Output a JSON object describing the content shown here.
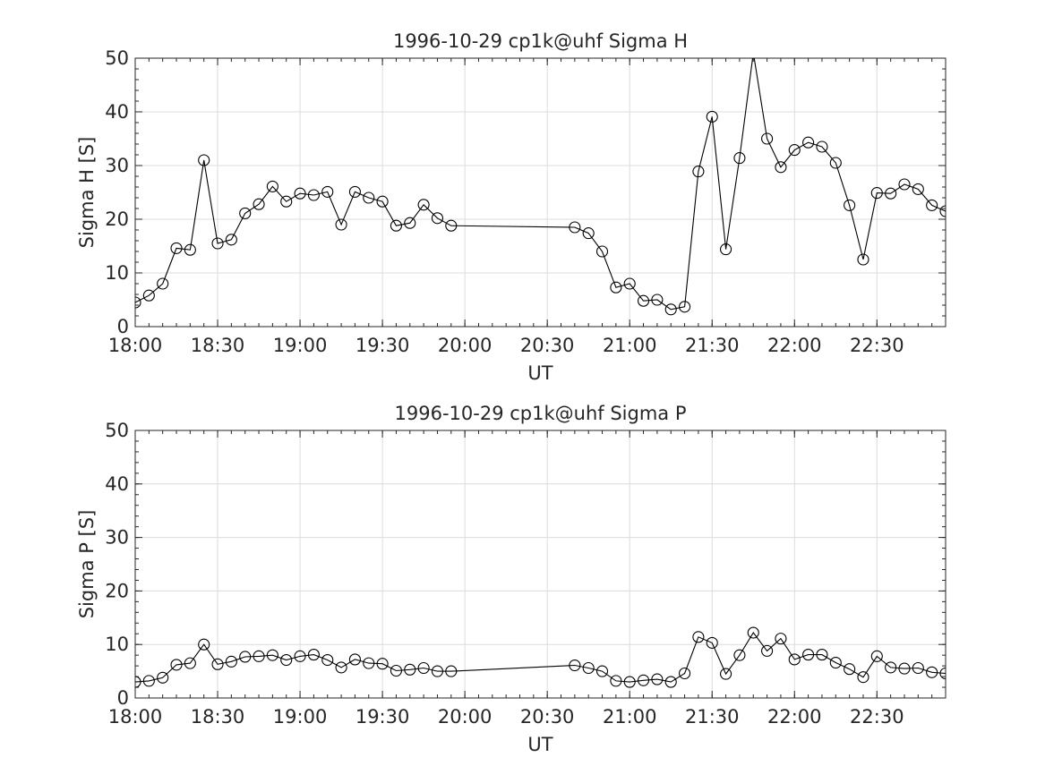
{
  "chart_data": [
    {
      "type": "line",
      "title": "1996-10-29  cp1k@uhf Sigma H",
      "xlabel": "UT",
      "ylabel": "Sigma H [S]",
      "x_ticks": [
        "18:00",
        "18:30",
        "19:00",
        "19:30",
        "20:00",
        "20:30",
        "21:00",
        "21:30",
        "22:00",
        "22:30"
      ],
      "y_ticks": [
        "0",
        "10",
        "20",
        "30",
        "40",
        "50"
      ],
      "xlim": [
        "18:00",
        "22:55"
      ],
      "ylim": [
        0,
        50
      ],
      "grid": true,
      "marker": "circle",
      "series": [
        {
          "x": [
            "18:00",
            "18:05",
            "18:10",
            "18:15",
            "18:20",
            "18:25",
            "18:30",
            "18:35",
            "18:40",
            "18:45",
            "18:50",
            "18:55",
            "19:00",
            "19:05",
            "19:10",
            "19:15",
            "19:20",
            "19:25",
            "19:30",
            "19:35",
            "19:40",
            "19:45",
            "19:50",
            "19:55",
            "20:40",
            "20:45",
            "20:50",
            "20:55",
            "21:00",
            "21:05",
            "21:10",
            "21:15",
            "21:20",
            "21:25",
            "21:30",
            "21:35",
            "21:40",
            "21:45",
            "21:50",
            "21:55",
            "22:00",
            "22:05",
            "22:10",
            "22:15",
            "22:20",
            "22:25",
            "22:30",
            "22:35",
            "22:40",
            "22:45",
            "22:50",
            "22:55"
          ],
          "y": [
            4.5,
            5.8,
            8.0,
            14.6,
            14.3,
            31.0,
            15.5,
            16.2,
            21.1,
            22.8,
            26.1,
            23.3,
            24.8,
            24.5,
            25.1,
            19.0,
            25.1,
            24.0,
            23.3,
            18.8,
            19.3,
            22.7,
            20.2,
            18.8,
            18.5,
            17.4,
            14.0,
            7.3,
            8.0,
            4.8,
            5.0,
            3.2,
            3.7,
            28.9,
            39.1,
            14.4,
            31.4,
            51.0,
            35.0,
            29.7,
            32.9,
            34.3,
            33.5,
            30.5,
            22.6,
            12.5,
            24.9,
            24.8,
            26.5,
            25.6,
            22.6,
            21.5
          ]
        }
      ]
    },
    {
      "type": "line",
      "title": "1996-10-29  cp1k@uhf Sigma P",
      "xlabel": "UT",
      "ylabel": "Sigma P [S]",
      "x_ticks": [
        "18:00",
        "18:30",
        "19:00",
        "19:30",
        "20:00",
        "20:30",
        "21:00",
        "21:30",
        "22:00",
        "22:30"
      ],
      "y_ticks": [
        "0",
        "10",
        "20",
        "30",
        "40",
        "50"
      ],
      "xlim": [
        "18:00",
        "22:55"
      ],
      "ylim": [
        0,
        50
      ],
      "grid": true,
      "marker": "circle",
      "series": [
        {
          "x": [
            "18:00",
            "18:05",
            "18:10",
            "18:15",
            "18:20",
            "18:25",
            "18:30",
            "18:35",
            "18:40",
            "18:45",
            "18:50",
            "18:55",
            "19:00",
            "19:05",
            "19:10",
            "19:15",
            "19:20",
            "19:25",
            "19:30",
            "19:35",
            "19:40",
            "19:45",
            "19:50",
            "19:55",
            "20:40",
            "20:45",
            "20:50",
            "20:55",
            "21:00",
            "21:05",
            "21:10",
            "21:15",
            "21:20",
            "21:25",
            "21:30",
            "21:35",
            "21:40",
            "21:45",
            "21:50",
            "21:55",
            "22:00",
            "22:05",
            "22:10",
            "22:15",
            "22:20",
            "22:25",
            "22:30",
            "22:35",
            "22:40",
            "22:45",
            "22:50",
            "22:55"
          ],
          "y": [
            3.0,
            3.2,
            3.8,
            6.2,
            6.5,
            10.0,
            6.3,
            6.8,
            7.7,
            7.8,
            8.0,
            7.1,
            7.8,
            8.1,
            7.1,
            5.7,
            7.2,
            6.5,
            6.4,
            5.1,
            5.3,
            5.6,
            5.0,
            5.0,
            6.1,
            5.6,
            5.0,
            3.2,
            3.0,
            3.3,
            3.5,
            3.0,
            4.6,
            11.4,
            10.3,
            4.5,
            8.0,
            12.2,
            8.8,
            11.1,
            7.2,
            8.1,
            8.1,
            6.6,
            5.4,
            3.9,
            7.8,
            5.7,
            5.5,
            5.6,
            4.8,
            4.6
          ]
        }
      ]
    }
  ]
}
